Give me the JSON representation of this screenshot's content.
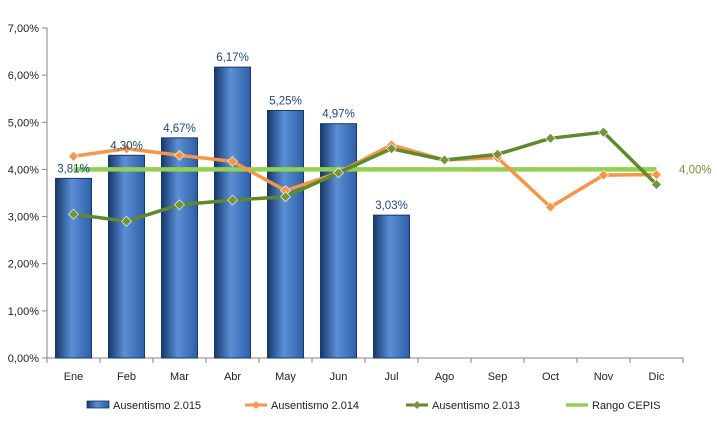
{
  "chart_data": {
    "type": "bar",
    "categories": [
      "Ene",
      "Feb",
      "Mar",
      "Abr",
      "May",
      "Jun",
      "Jul",
      "Ago",
      "Sep",
      "Oct",
      "Nov",
      "Dic"
    ],
    "y_tick_labels": [
      "0,00%",
      "1,00%",
      "2,00%",
      "3,00%",
      "4,00%",
      "5,00%",
      "6,00%",
      "7,00%"
    ],
    "ylim": [
      0,
      7
    ],
    "grid": false,
    "legend_position": "bottom",
    "colors": {
      "bars": "#2e5fa8",
      "bars_dark": "#16386d",
      "bars_light": "#5b8fd6",
      "series_2014": "#f79646",
      "series_2013": "#5e8a2c",
      "series_2013_marker": "#77933c",
      "reference": "#92d050",
      "bar_label": "#1f497d",
      "reference_label": "#77933c"
    },
    "series": [
      {
        "name": "Ausentismo 2.015",
        "kind": "bar",
        "values": [
          3.81,
          4.3,
          4.67,
          6.17,
          5.25,
          4.97,
          3.03,
          null,
          null,
          null,
          null,
          null
        ],
        "labels": [
          "3,81%",
          "4,30%",
          "4,67%",
          "6,17%",
          "5,25%",
          "4,97%",
          "3,03%",
          null,
          null,
          null,
          null,
          null
        ]
      },
      {
        "name": "Ausentismo 2.014",
        "kind": "line",
        "values": [
          4.28,
          4.44,
          4.3,
          4.17,
          3.55,
          3.93,
          4.52,
          4.2,
          4.25,
          3.2,
          3.88,
          3.89
        ]
      },
      {
        "name": "Ausentismo 2.013",
        "kind": "line",
        "values": [
          3.05,
          2.9,
          3.25,
          3.35,
          3.42,
          3.93,
          4.44,
          4.2,
          4.32,
          4.66,
          4.79,
          3.68
        ]
      },
      {
        "name": "Rango CEPIS",
        "kind": "reference",
        "value": 4.0,
        "label": "4,00%"
      }
    ]
  }
}
